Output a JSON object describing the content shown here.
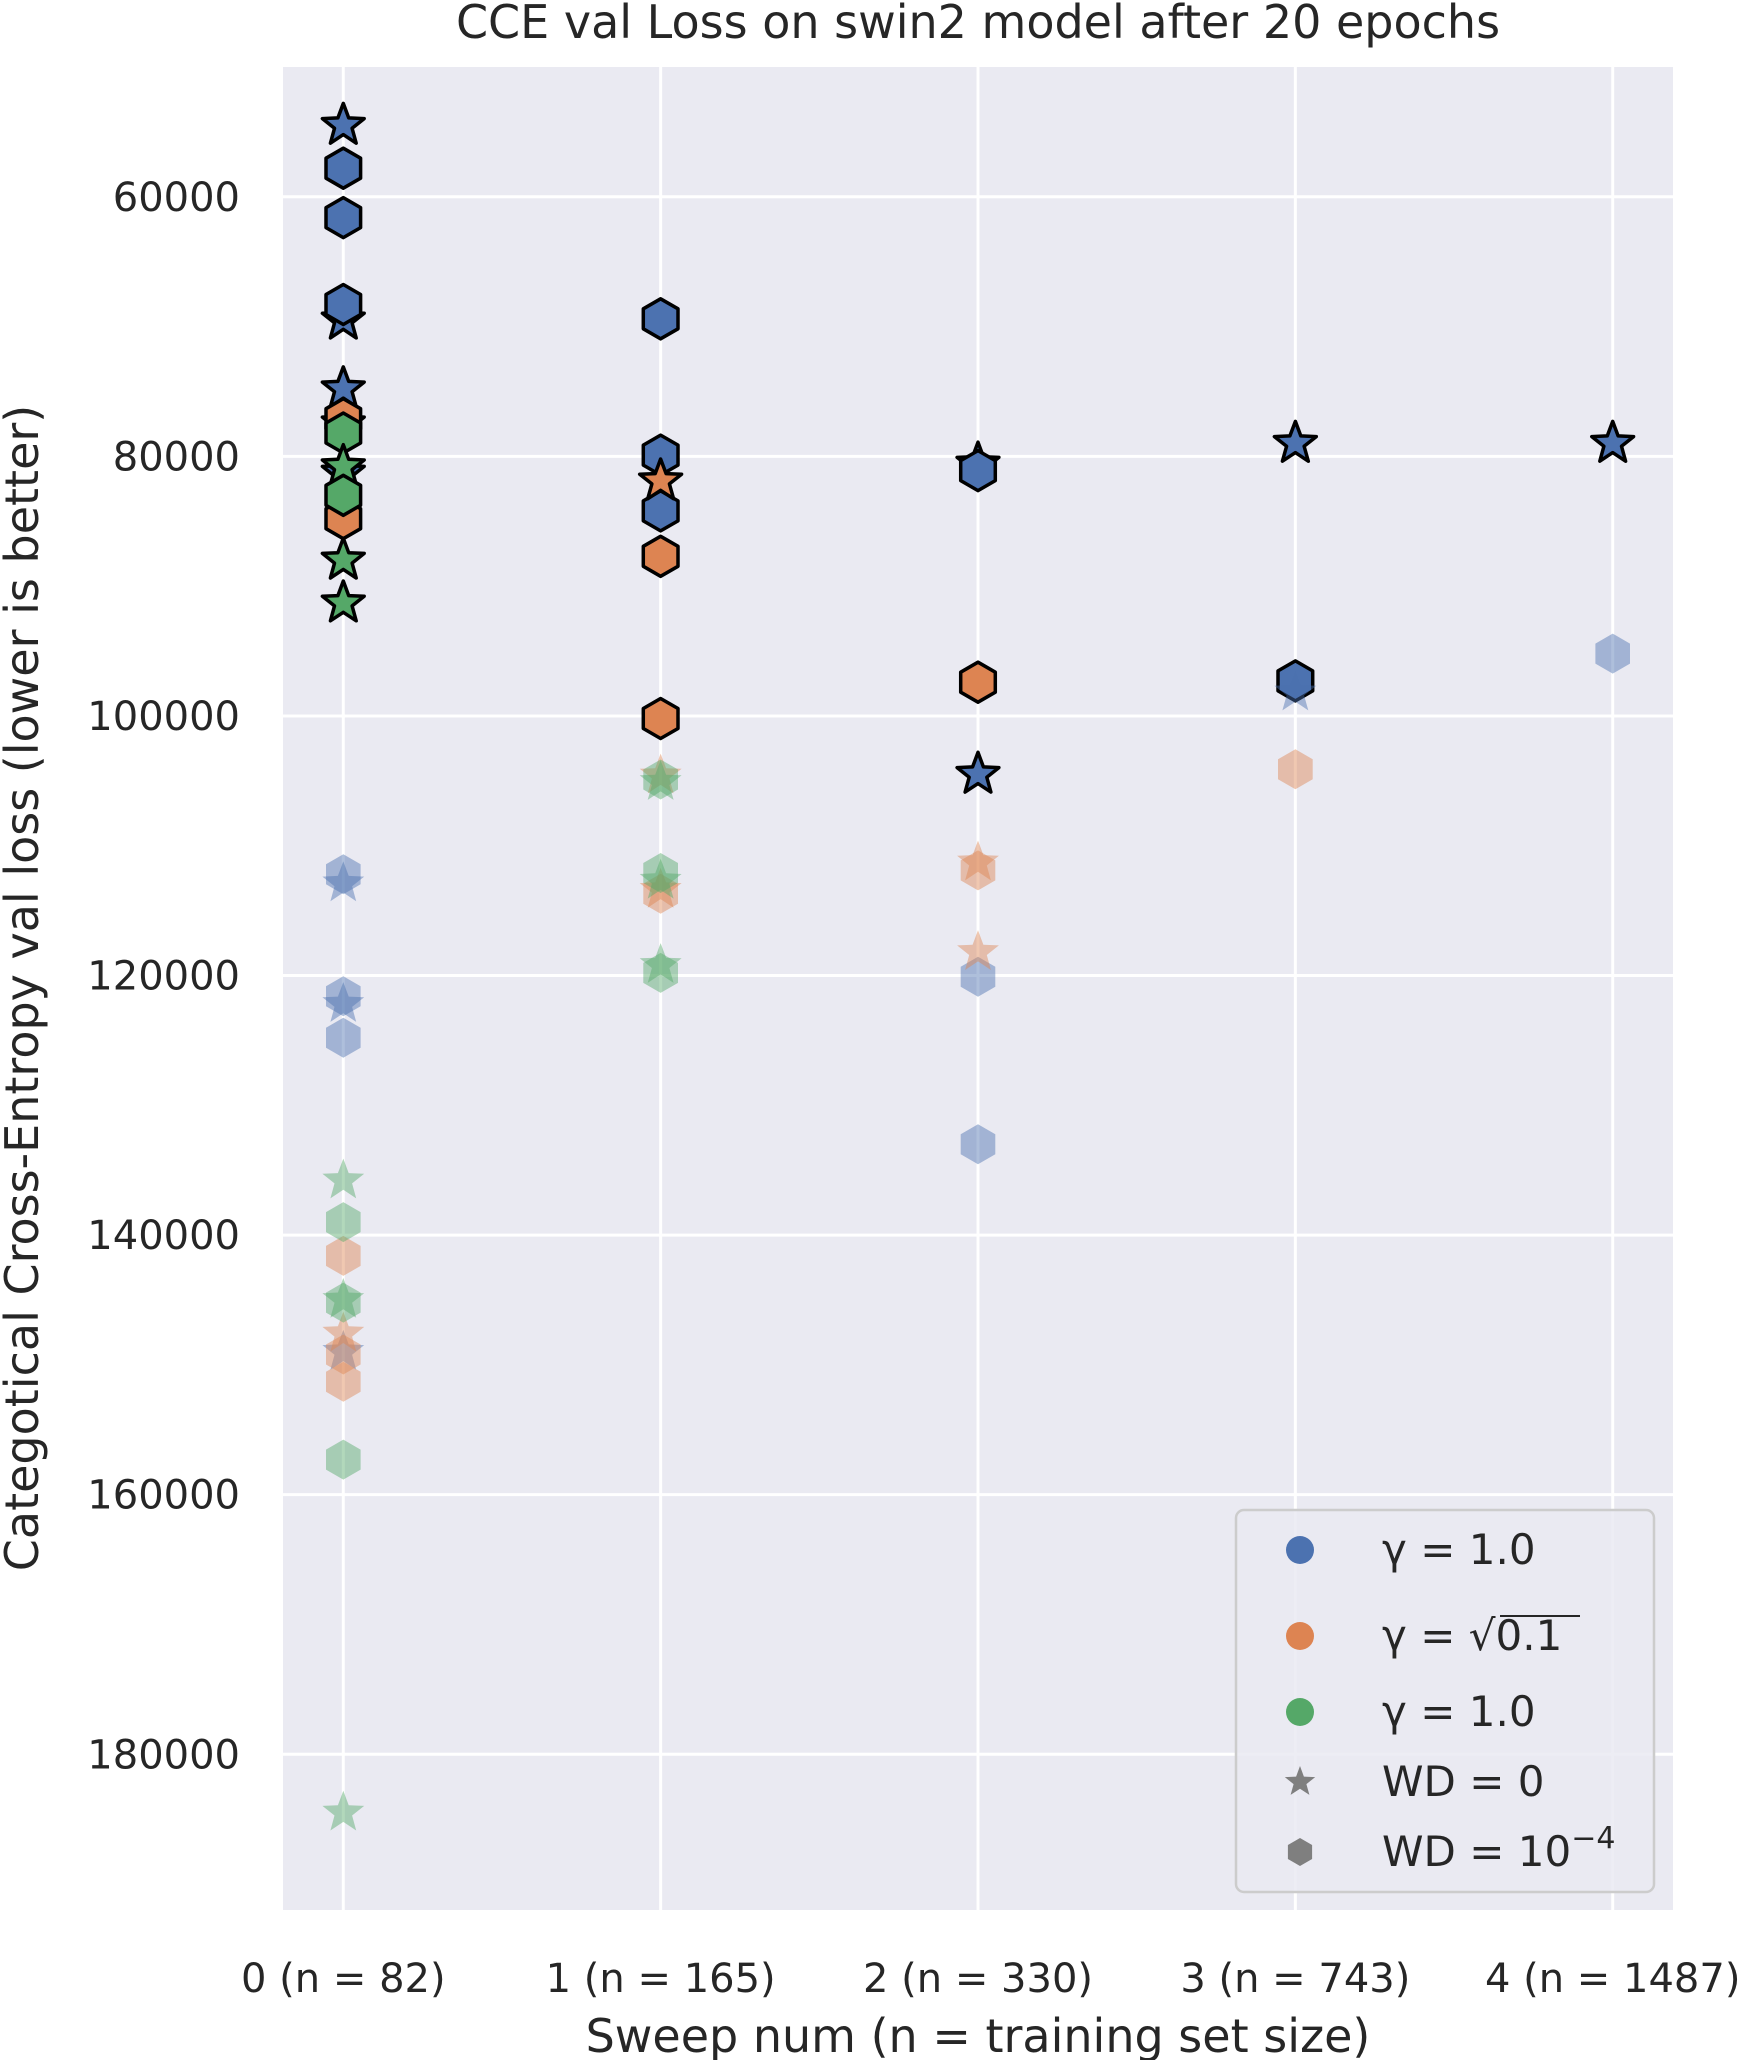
{
  "chart_data": {
    "type": "scatter",
    "title": "CCE val Loss on swin2 model after 20 epochs",
    "xlabel": "Sweep num (n = training set size)",
    "ylabel": "Categotical Cross-Entropy val loss (lower is better)",
    "y_inverted": true,
    "ylim": [
      50000,
      192000
    ],
    "xlim": [
      -0.19,
      4.19
    ],
    "x_ticks": [
      0,
      1,
      2,
      3,
      4
    ],
    "x_tick_labels": [
      "0 (n = 82)",
      "1 (n = 165)",
      "2 (n = 330)",
      "3 (n = 743)",
      "4 (n = 1487)"
    ],
    "y_ticks": [
      60000,
      80000,
      100000,
      120000,
      140000,
      160000,
      180000
    ],
    "y_tick_labels": [
      "60000",
      "80000",
      "100000",
      "120000",
      "140000",
      "160000",
      "180000"
    ],
    "grid": true,
    "legend_position": "lower-right",
    "colors": {
      "blue": "#4c72b0",
      "orange": "#dd8452",
      "green": "#55a868",
      "gray": "#7f7f7f",
      "background": "#eaeaf2",
      "grid": "#ffffff"
    },
    "legend": [
      {
        "label_prefix": "γ = ",
        "label_value": "1.0",
        "marker": "circle",
        "color": "#4c72b0"
      },
      {
        "label_prefix": "γ = √",
        "label_value": "0.1",
        "marker": "circle",
        "color": "#dd8452"
      },
      {
        "label_prefix": "γ = ",
        "label_value": "1.0",
        "marker": "circle",
        "color": "#55a868"
      },
      {
        "label_prefix": "WD = 0",
        "label_value": "",
        "marker": "star",
        "color": "#7f7f7f"
      },
      {
        "label_prefix": "WD = 10",
        "label_value": "−4",
        "marker": "hexagon",
        "color": "#7f7f7f"
      }
    ],
    "series": [
      {
        "group": "blue",
        "style": "highlighted",
        "color": "#4c72b0",
        "points": [
          {
            "x": 0,
            "y": 54500,
            "m": "star"
          },
          {
            "x": 0,
            "y": 57800,
            "m": "hexagon"
          },
          {
            "x": 0,
            "y": 61600,
            "m": "hexagon"
          },
          {
            "x": 0,
            "y": 69500,
            "m": "star"
          },
          {
            "x": 0,
            "y": 68300,
            "m": "hexagon"
          },
          {
            "x": 0,
            "y": 74800,
            "m": "star"
          },
          {
            "x": 0,
            "y": 77500,
            "m": "star"
          },
          {
            "x": 0,
            "y": 81300,
            "m": "star"
          },
          {
            "x": 1,
            "y": 69400,
            "m": "hexagon"
          },
          {
            "x": 1,
            "y": 79900,
            "m": "hexagon"
          },
          {
            "x": 1,
            "y": 84200,
            "m": "hexagon"
          },
          {
            "x": 2,
            "y": 80600,
            "m": "star"
          },
          {
            "x": 2,
            "y": 81100,
            "m": "hexagon"
          },
          {
            "x": 2,
            "y": 104500,
            "m": "star"
          },
          {
            "x": 3,
            "y": 79000,
            "m": "star"
          },
          {
            "x": 3,
            "y": 97300,
            "m": "hexagon"
          },
          {
            "x": 4,
            "y": 79000,
            "m": "star"
          }
        ]
      },
      {
        "group": "orange",
        "style": "highlighted",
        "color": "#dd8452",
        "points": [
          {
            "x": 0,
            "y": 77100,
            "m": "hexagon"
          },
          {
            "x": 0,
            "y": 84800,
            "m": "hexagon"
          },
          {
            "x": 1,
            "y": 81900,
            "m": "star"
          },
          {
            "x": 1,
            "y": 87700,
            "m": "hexagon"
          },
          {
            "x": 1,
            "y": 100200,
            "m": "hexagon"
          },
          {
            "x": 2,
            "y": 97400,
            "m": "hexagon"
          }
        ]
      },
      {
        "group": "green",
        "style": "highlighted",
        "color": "#55a868",
        "points": [
          {
            "x": 0,
            "y": 78200,
            "m": "hexagon"
          },
          {
            "x": 0,
            "y": 80800,
            "m": "star"
          },
          {
            "x": 0,
            "y": 83000,
            "m": "hexagon"
          },
          {
            "x": 0,
            "y": 88000,
            "m": "star"
          },
          {
            "x": 0,
            "y": 91300,
            "m": "star"
          }
        ]
      },
      {
        "group": "blue",
        "style": "faded",
        "color": "#4c72b0",
        "points": [
          {
            "x": 0,
            "y": 112200,
            "m": "hexagon"
          },
          {
            "x": 0,
            "y": 112900,
            "m": "star"
          },
          {
            "x": 0,
            "y": 121600,
            "m": "hexagon"
          },
          {
            "x": 0,
            "y": 122200,
            "m": "star"
          },
          {
            "x": 0,
            "y": 124800,
            "m": "hexagon"
          },
          {
            "x": 0,
            "y": 149000,
            "m": "star"
          },
          {
            "x": 2,
            "y": 120100,
            "m": "hexagon"
          },
          {
            "x": 2,
            "y": 133000,
            "m": "hexagon"
          },
          {
            "x": 3,
            "y": 98200,
            "m": "star"
          },
          {
            "x": 4,
            "y": 95200,
            "m": "hexagon"
          }
        ]
      },
      {
        "group": "orange",
        "style": "faded",
        "color": "#dd8452",
        "points": [
          {
            "x": 0,
            "y": 141600,
            "m": "hexagon"
          },
          {
            "x": 0,
            "y": 147600,
            "m": "star"
          },
          {
            "x": 0,
            "y": 149200,
            "m": "hexagon"
          },
          {
            "x": 0,
            "y": 151300,
            "m": "hexagon"
          },
          {
            "x": 1,
            "y": 104600,
            "m": "star"
          },
          {
            "x": 1,
            "y": 113400,
            "m": "star"
          },
          {
            "x": 1,
            "y": 113700,
            "m": "hexagon"
          },
          {
            "x": 2,
            "y": 111300,
            "m": "star"
          },
          {
            "x": 2,
            "y": 111900,
            "m": "hexagon"
          },
          {
            "x": 2,
            "y": 118200,
            "m": "star"
          },
          {
            "x": 3,
            "y": 104100,
            "m": "hexagon"
          }
        ]
      },
      {
        "group": "green",
        "style": "faded",
        "color": "#55a868",
        "points": [
          {
            "x": 0,
            "y": 135800,
            "m": "star"
          },
          {
            "x": 0,
            "y": 139000,
            "m": "hexagon"
          },
          {
            "x": 0,
            "y": 145000,
            "m": "star"
          },
          {
            "x": 0,
            "y": 145200,
            "m": "hexagon"
          },
          {
            "x": 0,
            "y": 157300,
            "m": "hexagon"
          },
          {
            "x": 0,
            "y": 184500,
            "m": "star"
          },
          {
            "x": 1,
            "y": 104900,
            "m": "hexagon"
          },
          {
            "x": 1,
            "y": 105100,
            "m": "star"
          },
          {
            "x": 1,
            "y": 112100,
            "m": "hexagon"
          },
          {
            "x": 1,
            "y": 112700,
            "m": "star"
          },
          {
            "x": 1,
            "y": 119200,
            "m": "star"
          },
          {
            "x": 1,
            "y": 119800,
            "m": "hexagon"
          }
        ]
      }
    ]
  }
}
